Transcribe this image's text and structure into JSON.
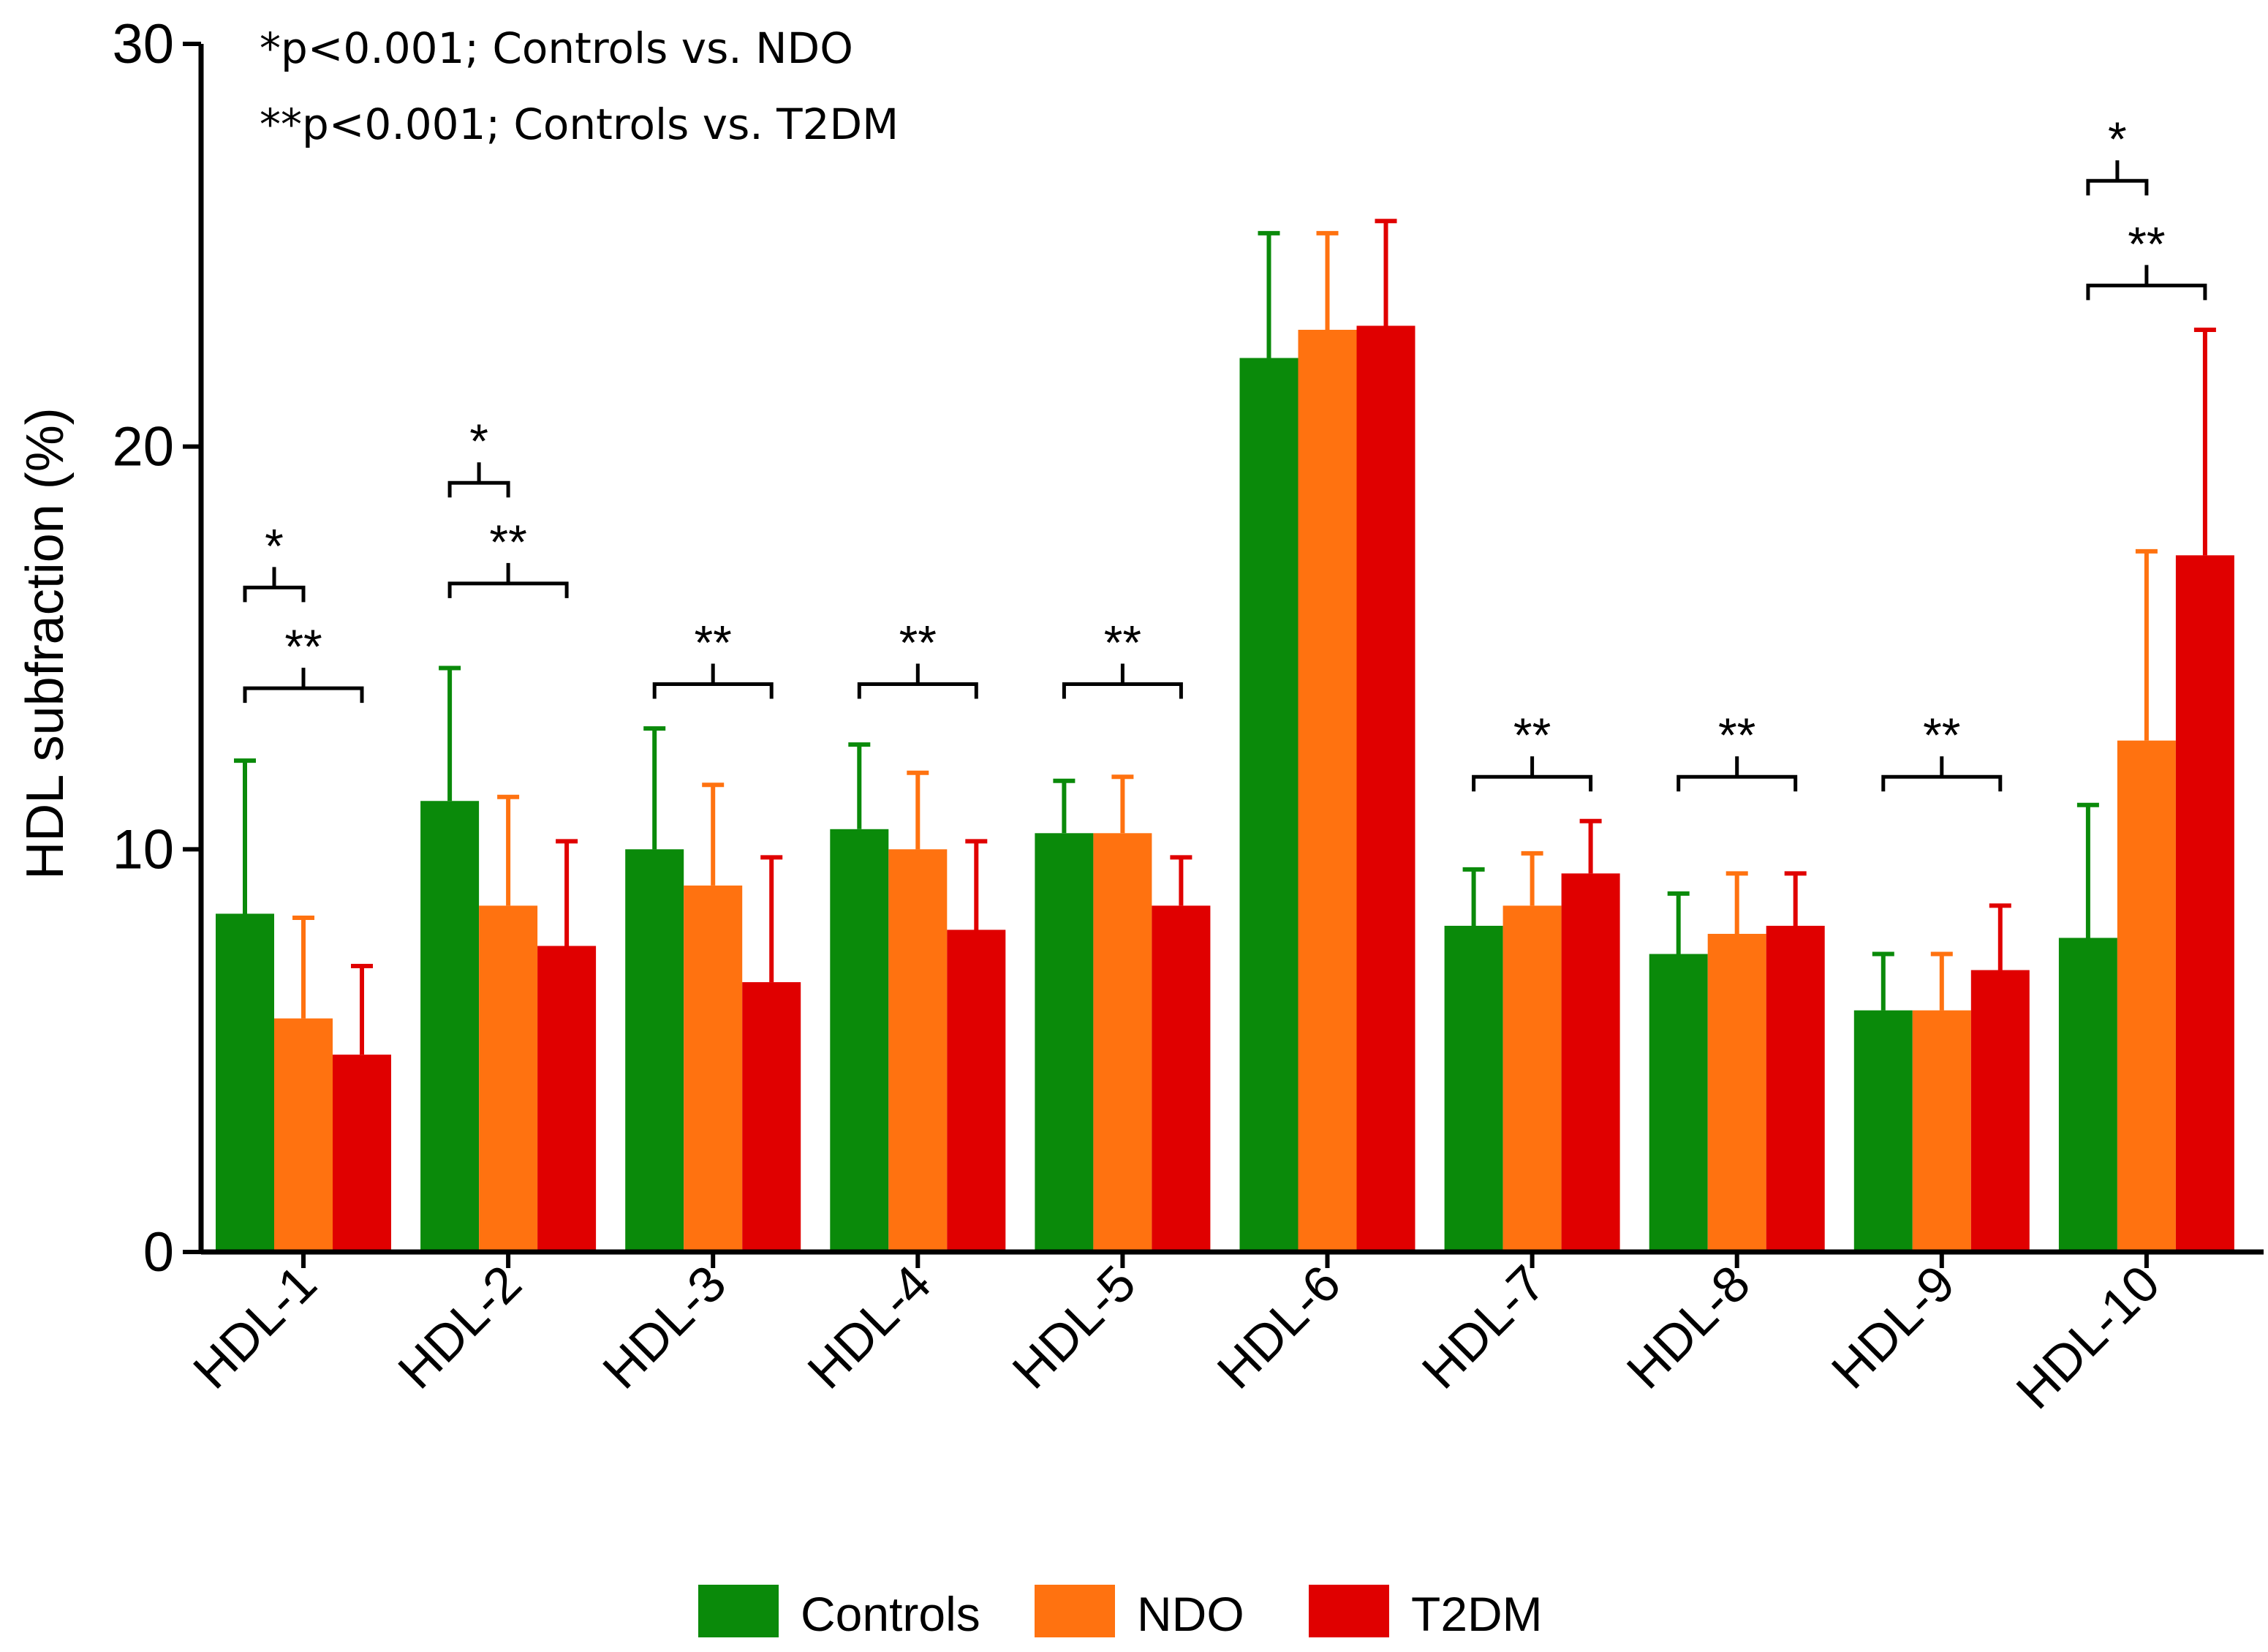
{
  "chart_data": {
    "type": "bar",
    "ylabel": "HDL subfraction (%)",
    "xlabel": "",
    "ylim": [
      0,
      30
    ],
    "yticks": [
      0,
      10,
      20,
      30
    ],
    "categories": [
      "HDL-1",
      "HDL-2",
      "HDL-3",
      "HDL-4",
      "HDL-5",
      "HDL-6",
      "HDL-7",
      "HDL-8",
      "HDL-9",
      "HDL-10"
    ],
    "series": [
      {
        "name": "Controls",
        "color": "#0a8a0a",
        "values": [
          8.4,
          11.2,
          10.0,
          10.5,
          10.4,
          22.2,
          8.1,
          7.4,
          6.0,
          7.8
        ],
        "error": [
          3.8,
          3.3,
          3.0,
          2.1,
          1.3,
          3.1,
          1.4,
          1.5,
          1.4,
          3.3
        ]
      },
      {
        "name": "NDO",
        "color": "#ff7210",
        "values": [
          5.8,
          8.6,
          9.1,
          10.0,
          10.4,
          22.9,
          8.6,
          7.9,
          6.0,
          12.7
        ],
        "error": [
          2.5,
          2.7,
          2.5,
          1.9,
          1.4,
          2.4,
          1.3,
          1.5,
          1.4,
          4.7
        ]
      },
      {
        "name": "T2DM",
        "color": "#e00000",
        "values": [
          4.9,
          7.6,
          6.7,
          8.0,
          8.6,
          23.0,
          9.4,
          8.1,
          7.0,
          17.3
        ],
        "error": [
          2.2,
          2.6,
          3.1,
          2.2,
          1.2,
          2.6,
          1.3,
          1.3,
          1.6,
          5.6
        ]
      }
    ],
    "annotations": {
      "notes": [
        "*p<0.001; Controls vs. NDO",
        "**p<0.001; Controls vs. T2DM"
      ],
      "brackets": [
        {
          "category": "HDL-1",
          "label": "*",
          "from": "Controls",
          "to": "NDO",
          "level": 16.5
        },
        {
          "category": "HDL-1",
          "label": "**",
          "from": "Controls",
          "to": "T2DM",
          "level": 14.0
        },
        {
          "category": "HDL-2",
          "label": "*",
          "from": "Controls",
          "to": "NDO",
          "level": 19.1
        },
        {
          "category": "HDL-2",
          "label": "**",
          "from": "Controls",
          "to": "T2DM",
          "level": 16.6
        },
        {
          "category": "HDL-3",
          "label": "**",
          "from": "Controls",
          "to": "T2DM",
          "level": 14.1
        },
        {
          "category": "HDL-4",
          "label": "**",
          "from": "Controls",
          "to": "T2DM",
          "level": 14.1
        },
        {
          "category": "HDL-5",
          "label": "**",
          "from": "Controls",
          "to": "T2DM",
          "level": 14.1
        },
        {
          "category": "HDL-7",
          "label": "**",
          "from": "Controls",
          "to": "T2DM",
          "level": 11.8
        },
        {
          "category": "HDL-8",
          "label": "**",
          "from": "Controls",
          "to": "T2DM",
          "level": 11.8
        },
        {
          "category": "HDL-9",
          "label": "**",
          "from": "Controls",
          "to": "T2DM",
          "level": 11.8
        },
        {
          "category": "HDL-10",
          "label": "*",
          "from": "Controls",
          "to": "NDO",
          "level": 26.6
        },
        {
          "category": "HDL-10",
          "label": "**",
          "from": "Controls",
          "to": "T2DM",
          "level": 24.0
        }
      ]
    },
    "legend": {
      "position": "bottom-center",
      "entries": [
        "Controls",
        "NDO",
        "T2DM"
      ]
    }
  }
}
